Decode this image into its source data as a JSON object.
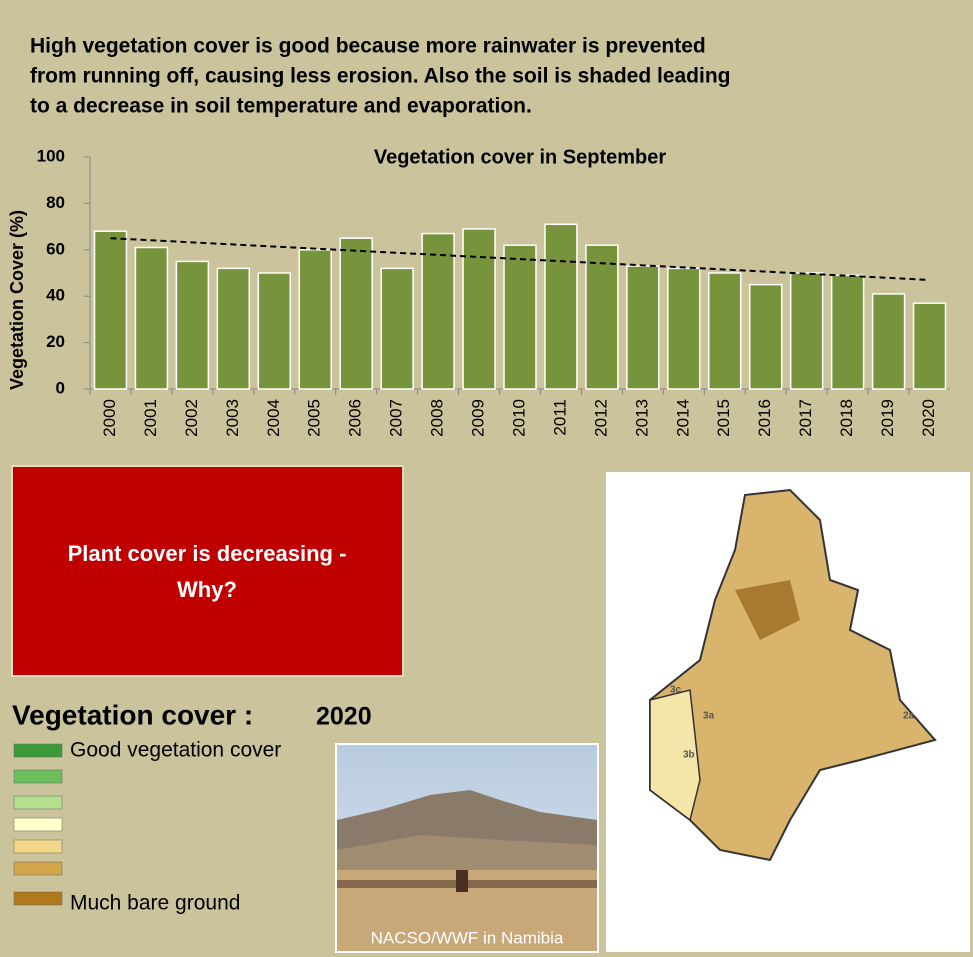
{
  "intro": [
    "High vegetation cover is good because more rainwater is prevented",
    "from running off, causing less erosion. Also the soil is shaded leading",
    "to a decrease in soil temperature and evaporation."
  ],
  "chart_data": {
    "type": "bar",
    "title": "Vegetation cover in September",
    "y_label": "Vegetation Cover (%)",
    "categories": [
      "2000",
      "2001",
      "2002",
      "2003",
      "2004",
      "2005",
      "2006",
      "2007",
      "2008",
      "2009",
      "2010",
      "2011",
      "2012",
      "2013",
      "2014",
      "2015",
      "2016",
      "2017",
      "2018",
      "2019",
      "2020"
    ],
    "values": [
      68,
      61,
      55,
      52,
      50,
      60,
      65,
      52,
      67,
      69,
      62,
      71,
      62,
      53,
      52,
      50,
      45,
      50,
      49,
      41,
      37
    ],
    "color": "#77933c",
    "ylim": [
      0,
      100
    ],
    "yticks": [
      0,
      20,
      40,
      60,
      80,
      100
    ],
    "grid": false,
    "trendline": {
      "start": 65,
      "end": 47
    }
  },
  "callout": [
    "Plant cover is decreasing -",
    "Why?"
  ],
  "legend": {
    "title": "Vegetation cover :",
    "year": "2020",
    "top_label": "Good vegetation cover",
    "bottom_label": "Much bare ground",
    "colors": [
      "#3a9a3a",
      "#6cbf5a",
      "#b5de8f",
      "#ffffcc",
      "#f2d68a",
      "#d4a64a",
      "#b07a1c"
    ]
  },
  "photo_credit": "NACSO/WWF in Namibia",
  "map_labels": [
    "3c",
    "3a",
    "3b",
    "2a"
  ]
}
